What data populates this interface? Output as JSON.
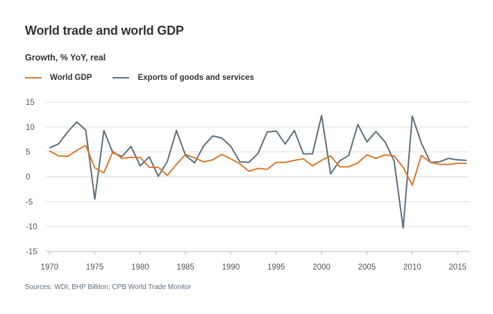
{
  "title": "World trade and world GDP",
  "subtitle": "Growth, % YoY, real",
  "legend": [
    {
      "label": "World GDP",
      "color": "#d9782d"
    },
    {
      "label": "Exports of goods and services",
      "color": "#5a6e7a"
    }
  ],
  "source": "Sources: WDI; BHP Billiton; CPB World Trade Monitor",
  "chart_data": {
    "type": "line",
    "x": [
      1970,
      1971,
      1972,
      1973,
      1974,
      1975,
      1976,
      1977,
      1978,
      1979,
      1980,
      1981,
      1982,
      1983,
      1984,
      1985,
      1986,
      1987,
      1988,
      1989,
      1990,
      1991,
      1992,
      1993,
      1994,
      1995,
      1996,
      1997,
      1998,
      1999,
      2000,
      2001,
      2002,
      2003,
      2004,
      2005,
      2006,
      2007,
      2008,
      2009,
      2010,
      2011,
      2012,
      2013,
      2014,
      2015,
      2016
    ],
    "series": [
      {
        "name": "World GDP",
        "color": "#d9782d",
        "values": [
          5.2,
          4.2,
          4.1,
          5.3,
          6.3,
          1.8,
          0.8,
          5.1,
          3.7,
          3.9,
          3.9,
          1.9,
          1.9,
          0.3,
          2.5,
          4.5,
          3.8,
          3.0,
          3.4,
          4.5,
          3.6,
          2.6,
          1.1,
          1.7,
          1.5,
          2.9,
          2.9,
          3.3,
          3.6,
          2.2,
          3.3,
          4.2,
          2.0,
          2.0,
          2.8,
          4.4,
          3.7,
          4.4,
          4.2,
          1.9,
          -1.7,
          4.3,
          2.9,
          2.5,
          2.5,
          2.7,
          2.7
        ]
      },
      {
        "name": "Exports of goods and services",
        "color": "#5a6e7a",
        "values": [
          5.8,
          6.6,
          9.0,
          11.0,
          9.4,
          -4.5,
          9.3,
          4.8,
          4.1,
          6.1,
          2.2,
          4.0,
          0.1,
          3.1,
          9.3,
          4.3,
          2.8,
          6.2,
          8.2,
          7.8,
          6.1,
          3.0,
          2.9,
          4.7,
          9.0,
          9.2,
          6.6,
          9.3,
          4.6,
          4.6,
          12.3,
          0.6,
          3.2,
          4.3,
          10.5,
          7.0,
          9.1,
          7.0,
          3.2,
          -10.3,
          12.2,
          6.8,
          2.9,
          3.0,
          3.7,
          3.4,
          3.3
        ]
      }
    ],
    "xticks": [
      "1970",
      "1975",
      "1980",
      "1985",
      "1990",
      "1995",
      "2000",
      "2005",
      "2010",
      "2015"
    ],
    "yticks": [
      "15",
      "10",
      "5",
      "0",
      "-5",
      "-10",
      "-15"
    ],
    "xlim": [
      1969.6,
      2016.3
    ],
    "ylim": [
      -15,
      15
    ],
    "grid": "horizontal",
    "legend_position": "top-left"
  }
}
